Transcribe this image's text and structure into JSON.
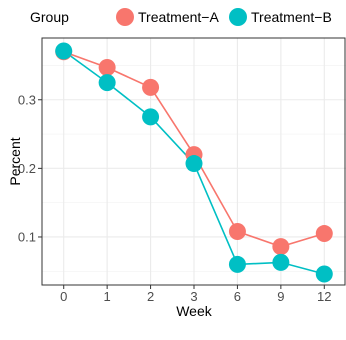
{
  "chart_data": {
    "type": "line",
    "xlabel": "Week",
    "ylabel": "Percent",
    "x": [
      "0",
      "1",
      "2",
      "3",
      "6",
      "9",
      "12"
    ],
    "yticks": [
      0.1,
      0.2,
      0.3
    ],
    "ylim": [
      0.03,
      0.39
    ],
    "grid": true,
    "legend": {
      "title": "Group",
      "position": "top"
    },
    "series": [
      {
        "name": "Treatment−A",
        "color": "#F8766D",
        "values": [
          0.37,
          0.347,
          0.318,
          0.22,
          0.108,
          0.086,
          0.105
        ]
      },
      {
        "name": "Treatment−B",
        "color": "#00BFC4",
        "values": [
          0.371,
          0.325,
          0.275,
          0.207,
          0.06,
          0.063,
          0.046
        ]
      }
    ]
  }
}
